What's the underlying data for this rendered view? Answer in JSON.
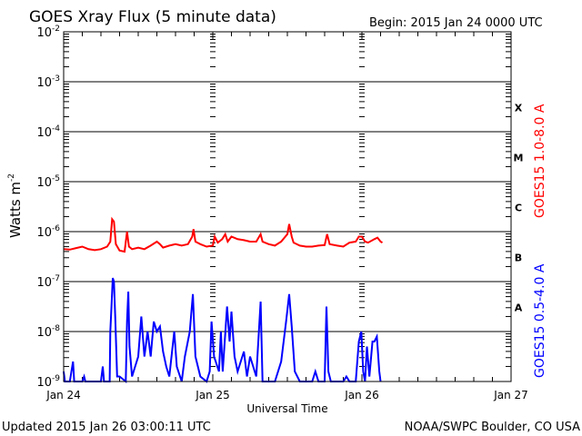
{
  "chart_data": {
    "type": "line",
    "title": "GOES Xray Flux (5 minute data)",
    "begin_label": "Begin:  2015 Jan 24 0000 UTC",
    "xlabel": "Universal Time",
    "ylabel": "Watts m",
    "ylabel_sup": "-2",
    "y_scale": "log",
    "ylim_log10": [
      -9,
      -2
    ],
    "y_tick_labels": [
      {
        "base": "10",
        "exp": "-2",
        "log": -2
      },
      {
        "base": "10",
        "exp": "-3",
        "log": -3
      },
      {
        "base": "10",
        "exp": "-4",
        "log": -4
      },
      {
        "base": "10",
        "exp": "-5",
        "log": -5
      },
      {
        "base": "10",
        "exp": "-6",
        "log": -6
      },
      {
        "base": "10",
        "exp": "-7",
        "log": -7
      },
      {
        "base": "10",
        "exp": "-8",
        "log": -8
      },
      {
        "base": "10",
        "exp": "-9",
        "log": -9
      }
    ],
    "x_unit": "hours since 2015 Jan 24 0000 UTC",
    "xlim_hours": [
      0,
      72
    ],
    "x_tick_labels": [
      {
        "label": "Jan 24",
        "hour": 0
      },
      {
        "label": "Jan 25",
        "hour": 24
      },
      {
        "label": "Jan 26",
        "hour": 48
      },
      {
        "label": "Jan 27",
        "hour": 72
      }
    ],
    "flare_classes": [
      {
        "label": "X",
        "log": -3.5
      },
      {
        "label": "M",
        "log": -4.5
      },
      {
        "label": "C",
        "log": -5.5
      },
      {
        "label": "B",
        "log": -6.5
      },
      {
        "label": "A",
        "log": -7.5
      }
    ],
    "series": [
      {
        "name": "GOES15 1.0-8.0 A",
        "color": "#ff0000",
        "points": [
          [
            0,
            -6.35
          ],
          [
            1,
            -6.36
          ],
          [
            2,
            -6.33
          ],
          [
            3,
            -6.3
          ],
          [
            4,
            -6.35
          ],
          [
            5,
            -6.37
          ],
          [
            6,
            -6.35
          ],
          [
            7,
            -6.3
          ],
          [
            7.5,
            -6.2
          ],
          [
            7.8,
            -5.75
          ],
          [
            8.1,
            -5.8
          ],
          [
            8.4,
            -6.25
          ],
          [
            9,
            -6.38
          ],
          [
            9.8,
            -6.4
          ],
          [
            10.2,
            -6.0
          ],
          [
            10.5,
            -6.3
          ],
          [
            11,
            -6.35
          ],
          [
            12,
            -6.32
          ],
          [
            13,
            -6.35
          ],
          [
            14,
            -6.28
          ],
          [
            15,
            -6.2
          ],
          [
            15.5,
            -6.25
          ],
          [
            16,
            -6.32
          ],
          [
            17,
            -6.28
          ],
          [
            18,
            -6.25
          ],
          [
            19,
            -6.28
          ],
          [
            20,
            -6.25
          ],
          [
            20.7,
            -6.1
          ],
          [
            20.9,
            -5.95
          ],
          [
            21.2,
            -6.2
          ],
          [
            22,
            -6.25
          ],
          [
            23,
            -6.3
          ],
          [
            24,
            -6.28
          ],
          [
            24.3,
            -6.1
          ],
          [
            24.8,
            -6.22
          ],
          [
            25.5,
            -6.15
          ],
          [
            26,
            -6.05
          ],
          [
            26.4,
            -6.2
          ],
          [
            27,
            -6.1
          ],
          [
            28,
            -6.15
          ],
          [
            29,
            -6.17
          ],
          [
            30,
            -6.2
          ],
          [
            31,
            -6.2
          ],
          [
            31.7,
            -6.05
          ],
          [
            32,
            -6.2
          ],
          [
            33,
            -6.25
          ],
          [
            34,
            -6.28
          ],
          [
            35,
            -6.2
          ],
          [
            36,
            -6.05
          ],
          [
            36.3,
            -5.85
          ],
          [
            36.7,
            -6.1
          ],
          [
            37,
            -6.22
          ],
          [
            38,
            -6.28
          ],
          [
            39,
            -6.3
          ],
          [
            40,
            -6.3
          ],
          [
            41,
            -6.28
          ],
          [
            42,
            -6.27
          ],
          [
            42.4,
            -6.05
          ],
          [
            42.8,
            -6.25
          ],
          [
            44,
            -6.28
          ],
          [
            45,
            -6.3
          ],
          [
            46,
            -6.22
          ],
          [
            47,
            -6.2
          ],
          [
            47.5,
            -6.1
          ],
          [
            48,
            -6.1
          ],
          [
            48.5,
            -6.2
          ],
          [
            49,
            -6.22
          ],
          [
            50,
            -6.15
          ],
          [
            50.5,
            -6.12
          ],
          [
            51,
            -6.2
          ],
          [
            51.3,
            -6.22
          ]
        ]
      },
      {
        "name": "GOES15 0.5-4.0 A",
        "color": "#0000ff",
        "points": [
          [
            0,
            -8.8
          ],
          [
            0.2,
            -9
          ],
          [
            1,
            -9
          ],
          [
            1.5,
            -8.6
          ],
          [
            1.7,
            -9
          ],
          [
            3,
            -9
          ],
          [
            3.3,
            -8.9
          ],
          [
            3.5,
            -9
          ],
          [
            6,
            -9
          ],
          [
            6.3,
            -8.7
          ],
          [
            6.5,
            -9
          ],
          [
            7.4,
            -9
          ],
          [
            7.5,
            -8.0
          ],
          [
            7.7,
            -7.5
          ],
          [
            7.9,
            -6.93
          ],
          [
            8.1,
            -7.0
          ],
          [
            8.3,
            -7.7
          ],
          [
            8.6,
            -8.9
          ],
          [
            9,
            -8.9
          ],
          [
            10,
            -9
          ],
          [
            10.2,
            -7.8
          ],
          [
            10.4,
            -7.2
          ],
          [
            10.6,
            -8.3
          ],
          [
            11,
            -8.9
          ],
          [
            11.5,
            -8.7
          ],
          [
            12,
            -8.5
          ],
          [
            12.5,
            -7.7
          ],
          [
            13,
            -8.5
          ],
          [
            13.5,
            -8.0
          ],
          [
            14,
            -8.5
          ],
          [
            14.5,
            -7.8
          ],
          [
            15,
            -8.0
          ],
          [
            15.5,
            -7.9
          ],
          [
            16,
            -8.4
          ],
          [
            16.5,
            -8.7
          ],
          [
            17,
            -8.9
          ],
          [
            17.8,
            -8.0
          ],
          [
            18.2,
            -8.7
          ],
          [
            19,
            -9
          ],
          [
            19.5,
            -8.5
          ],
          [
            20.3,
            -8.0
          ],
          [
            20.8,
            -7.25
          ],
          [
            21.2,
            -8.5
          ],
          [
            22,
            -8.9
          ],
          [
            23,
            -9
          ],
          [
            23.5,
            -8.8
          ],
          [
            23.8,
            -7.8
          ],
          [
            24.2,
            -8.5
          ],
          [
            25,
            -8.8
          ],
          [
            25.3,
            -8.0
          ],
          [
            25.6,
            -8.8
          ],
          [
            26.3,
            -7.5
          ],
          [
            26.7,
            -8.2
          ],
          [
            27,
            -7.6
          ],
          [
            27.5,
            -8.5
          ],
          [
            28,
            -8.8
          ],
          [
            29,
            -8.4
          ],
          [
            29.5,
            -8.9
          ],
          [
            30,
            -8.5
          ],
          [
            31,
            -8.9
          ],
          [
            31.7,
            -7.4
          ],
          [
            32,
            -9
          ],
          [
            34,
            -9
          ],
          [
            35,
            -8.6
          ],
          [
            35.8,
            -7.8
          ],
          [
            36.3,
            -7.25
          ],
          [
            36.7,
            -7.9
          ],
          [
            37.2,
            -8.8
          ],
          [
            38,
            -9
          ],
          [
            40,
            -9
          ],
          [
            40.5,
            -8.8
          ],
          [
            41,
            -9
          ],
          [
            42,
            -9
          ],
          [
            42.3,
            -7.5
          ],
          [
            42.6,
            -8.8
          ],
          [
            43,
            -9
          ],
          [
            45,
            -9
          ],
          [
            45.5,
            -8.9
          ],
          [
            46,
            -9
          ],
          [
            47,
            -9
          ],
          [
            47.5,
            -8.2
          ],
          [
            47.9,
            -8.0
          ],
          [
            48.2,
            -8.8
          ],
          [
            48.5,
            -9
          ],
          [
            48.8,
            -8.3
          ],
          [
            49.2,
            -8.9
          ],
          [
            49.7,
            -8.2
          ],
          [
            50,
            -8.2
          ],
          [
            50.4,
            -8.1
          ],
          [
            50.8,
            -8.8
          ],
          [
            51,
            -9
          ]
        ]
      }
    ],
    "grid": "horizontal at decades",
    "legend_placement": "right (rotated)"
  },
  "footer": {
    "updated": "Updated 2015 Jan 26 03:00:11 UTC",
    "source": "NOAA/SWPC Boulder, CO USA"
  }
}
